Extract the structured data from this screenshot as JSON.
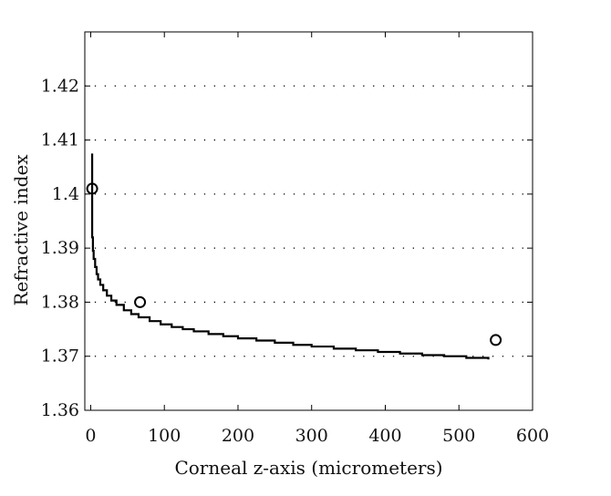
{
  "chart_data": {
    "type": "line",
    "xlabel": "Corneal z-axis (micrometers)",
    "ylabel": "Refractive index",
    "xlim": [
      -8,
      600
    ],
    "ylim": [
      1.36,
      1.43
    ],
    "xticks": [
      0,
      100,
      200,
      300,
      400,
      500,
      600
    ],
    "yticks": [
      1.36,
      1.37,
      1.38,
      1.39,
      1.4,
      1.41,
      1.42
    ],
    "ytick_labels": [
      "1.36",
      "1.37",
      "1.38",
      "1.39",
      "1.4",
      "1.41",
      "1.42"
    ],
    "xtick_labels": [
      "0",
      "100",
      "200",
      "300",
      "400",
      "500",
      "600"
    ],
    "grid": "horizontal dotted",
    "series": [
      {
        "style": "stepped line",
        "color": "#000000",
        "x": [
          2,
          2,
          3,
          4,
          6,
          8,
          10,
          13,
          17,
          22,
          28,
          35,
          45,
          55,
          65,
          80,
          95,
          110,
          125,
          140,
          160,
          180,
          200,
          225,
          250,
          275,
          300,
          330,
          360,
          390,
          420,
          450,
          480,
          510,
          540
        ],
        "y": [
          1.4075,
          1.392,
          1.3895,
          1.388,
          1.3865,
          1.3852,
          1.3842,
          1.3832,
          1.3822,
          1.3812,
          1.3803,
          1.3795,
          1.3785,
          1.3778,
          1.3772,
          1.3765,
          1.3759,
          1.3754,
          1.375,
          1.3746,
          1.3741,
          1.3737,
          1.3733,
          1.3729,
          1.3725,
          1.3721,
          1.3718,
          1.3714,
          1.3711,
          1.3708,
          1.3705,
          1.3702,
          1.37,
          1.3697,
          1.3694
        ]
      },
      {
        "style": "open circle markers",
        "color": "#000000",
        "x": [
          2,
          67,
          550
        ],
        "y": [
          1.401,
          1.38,
          1.373
        ]
      }
    ]
  }
}
